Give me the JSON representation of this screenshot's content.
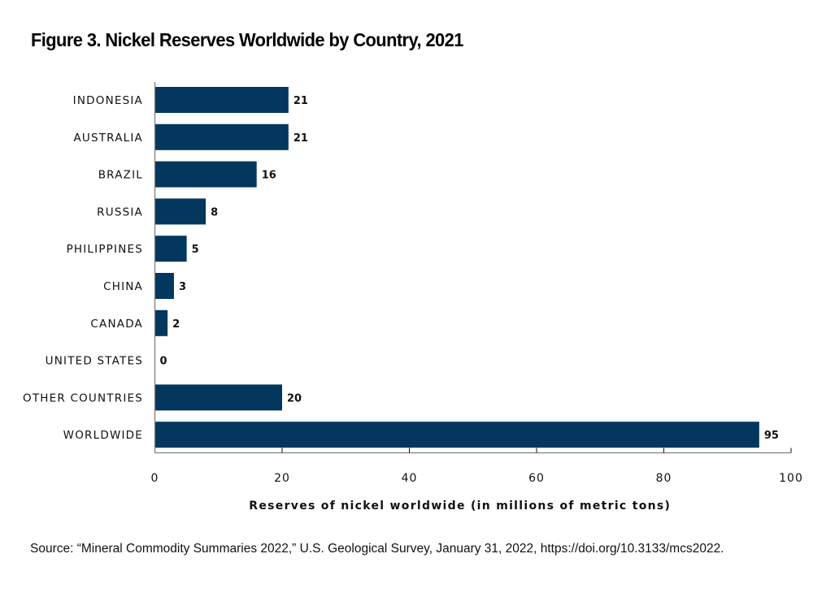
{
  "chart_data": {
    "type": "bar",
    "orientation": "horizontal",
    "title": "Figure 3. Nickel Reserves Worldwide by Country, 2021",
    "categories": [
      "INDONESIA",
      "AUSTRALIA",
      "BRAZIL",
      "RUSSIA",
      "PHILIPPINES",
      "CHINA",
      "CANADA",
      "UNITED STATES",
      "OTHER COUNTRIES",
      "WORLDWIDE"
    ],
    "values": [
      21,
      21,
      16,
      8,
      5,
      3,
      2,
      0,
      20,
      95
    ],
    "xlabel": "Reserves of nickel worldwide (in millions of metric tons)",
    "ylabel": "",
    "xlim": [
      0,
      100
    ],
    "xticks": [
      0,
      20,
      40,
      60,
      80,
      100
    ],
    "grid": false,
    "legend": "none",
    "bar_color": "#04375e",
    "axis_color": "#7f7f7f"
  },
  "source": "Source: “Mineral Commodity Summaries 2022,” U.S. Geological Survey, January 31, 2022, https://doi.org/10.3133/mcs2022."
}
